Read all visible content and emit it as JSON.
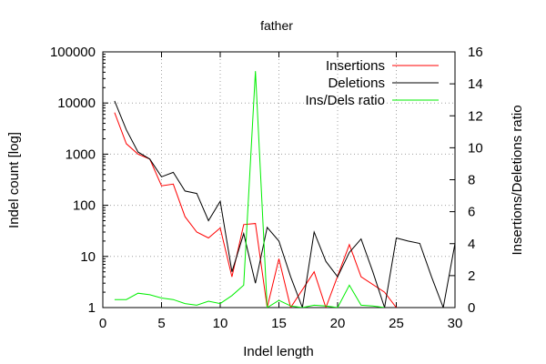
{
  "chart_data": {
    "type": "line",
    "title": "father",
    "xlabel": "Indel length",
    "ylabel": "Indel count [log]",
    "y2label": "Insertions/Deletions ratio",
    "xlim": [
      0,
      30
    ],
    "ylim": [
      1,
      100000
    ],
    "yscale": "log",
    "y2lim": [
      0,
      16
    ],
    "grid": true,
    "legend_position": "top-right",
    "x_ticks": [
      "0",
      "5",
      "10",
      "15",
      "20",
      "25",
      "30"
    ],
    "y_ticks": [
      "1",
      "10",
      "100",
      "1000",
      "10000",
      "100000"
    ],
    "y2_ticks": [
      "0",
      "2",
      "4",
      "6",
      "8",
      "10",
      "12",
      "14",
      "16"
    ],
    "series": [
      {
        "name": "Insertions",
        "color": "#ff0000",
        "axis": "left",
        "x": [
          1,
          2,
          3,
          4,
          5,
          6,
          7,
          8,
          9,
          10,
          11,
          12,
          13,
          14,
          15,
          16,
          18,
          19,
          21,
          22,
          24,
          25
        ],
        "y": [
          6500,
          1600,
          1000,
          800,
          240,
          260,
          60,
          30,
          23,
          36,
          4,
          42,
          44,
          1,
          9,
          1,
          5,
          1,
          17,
          4,
          2,
          1
        ]
      },
      {
        "name": "Deletions",
        "color": "#000000",
        "axis": "left",
        "x": [
          1,
          2,
          3,
          4,
          5,
          6,
          7,
          8,
          9,
          10,
          11,
          12,
          13,
          14,
          15,
          16,
          17,
          18,
          19,
          20,
          21,
          22,
          23,
          24,
          25,
          26,
          27,
          28,
          29,
          30
        ],
        "y": [
          11000,
          3000,
          1100,
          800,
          360,
          440,
          190,
          170,
          50,
          120,
          5,
          28,
          3,
          37,
          20,
          4,
          1,
          30,
          8,
          4,
          12,
          22,
          5,
          1,
          23,
          20,
          18,
          4,
          1,
          18
        ]
      },
      {
        "name": "Ins/Dels ratio",
        "color": "#00ee00",
        "axis": "right",
        "x": [
          1,
          2,
          3,
          4,
          5,
          6,
          7,
          8,
          9,
          10,
          11,
          12,
          13,
          14,
          15,
          16,
          17,
          18,
          19,
          20,
          21,
          22,
          23,
          24
        ],
        "y": [
          0.5,
          0.5,
          0.9,
          0.8,
          0.6,
          0.5,
          0.25,
          0.15,
          0.4,
          0.25,
          0.75,
          1.4,
          14.8,
          0.0,
          0.45,
          0.1,
          0.0,
          0.15,
          0.1,
          0.0,
          1.4,
          0.15,
          0.1,
          0.0
        ]
      }
    ]
  }
}
